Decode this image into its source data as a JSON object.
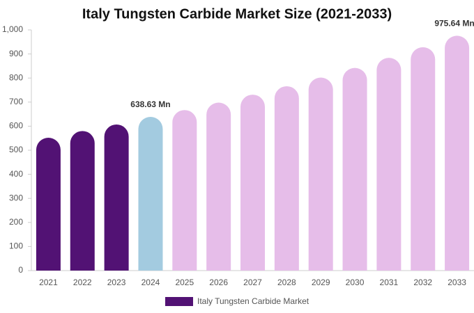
{
  "chart_data": {
    "type": "bar",
    "title": "Italy Tungsten Carbide Market Size (2021-2033)",
    "categories": [
      "2021",
      "2022",
      "2023",
      "2024",
      "2025",
      "2026",
      "2027",
      "2028",
      "2029",
      "2030",
      "2031",
      "2032",
      "2033"
    ],
    "series": [
      {
        "name": "Italy Tungsten Carbide Market",
        "color": "#521274",
        "values": [
          552,
          580,
          607,
          638.63,
          667,
          698,
          731,
          766,
          802,
          842,
          884,
          928,
          975.64
        ],
        "value_labels": [
          null,
          null,
          null,
          "638.63 Mn",
          null,
          null,
          null,
          null,
          null,
          null,
          null,
          null,
          "975.64 Mn"
        ],
        "colors": [
          "#521274",
          "#521274",
          "#521274",
          "#a3cbe0",
          "#e6bde9",
          "#e6bde9",
          "#e6bde9",
          "#e6bde9",
          "#e6bde9",
          "#e6bde9",
          "#e6bde9",
          "#e6bde9",
          "#e6bde9"
        ]
      }
    ],
    "ylim": [
      0,
      1000
    ],
    "yticks": [
      0,
      100,
      200,
      300,
      400,
      500,
      600,
      700,
      800,
      900,
      {
        "value": 1000,
        "label": "1,000"
      }
    ],
    "grid": false,
    "legend": "bottom"
  }
}
